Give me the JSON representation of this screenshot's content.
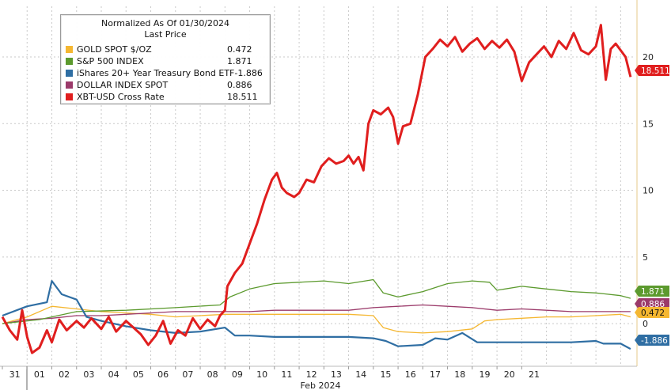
{
  "legend": {
    "title_line1": "Normalized As Of 01/30/2024",
    "title_line2": "Last Price",
    "items": [
      {
        "name": "GOLD SPOT $/OZ",
        "value": "0.472",
        "color": "#f5b731"
      },
      {
        "name": "S&P 500 INDEX",
        "value": "1.871",
        "color": "#5c9a2e"
      },
      {
        "name": "iShares 20+ Year Treasury Bond ETF",
        "value": "-1.886",
        "color": "#2f6ea3"
      },
      {
        "name": "DOLLAR INDEX SPOT",
        "value": "0.886",
        "color": "#9b3a6a"
      },
      {
        "name": "XBT-USD Cross Rate",
        "value": "18.511",
        "color": "#e01e1e"
      }
    ]
  },
  "chart_data": {
    "type": "line",
    "xlabel": "Feb 2024",
    "x_ticks": [
      "31",
      "01",
      "02",
      "03",
      "04",
      "05",
      "06",
      "07",
      "08",
      "09",
      "10",
      "11",
      "12",
      "13",
      "14",
      "15",
      "16",
      "17",
      "18",
      "19",
      "20",
      "21"
    ],
    "y_ticks": [
      0,
      5,
      10,
      15,
      20
    ],
    "ylim": [
      -3.2,
      23.8
    ],
    "grid": true,
    "legend_position": "top-left",
    "series": [
      {
        "name": "XBT-USD Cross Rate",
        "color": "#e01e1e",
        "last_label": "18.511",
        "points": [
          [
            0,
            0.5
          ],
          [
            0.3,
            -0.5
          ],
          [
            0.6,
            -1.2
          ],
          [
            0.8,
            1.0
          ],
          [
            1.0,
            -1.0
          ],
          [
            1.2,
            -2.2
          ],
          [
            1.5,
            -1.8
          ],
          [
            1.8,
            -0.5
          ],
          [
            2.0,
            -1.4
          ],
          [
            2.3,
            0.3
          ],
          [
            2.6,
            -0.5
          ],
          [
            3.0,
            0.2
          ],
          [
            3.3,
            -0.3
          ],
          [
            3.6,
            0.4
          ],
          [
            4.0,
            -0.4
          ],
          [
            4.3,
            0.5
          ],
          [
            4.6,
            -0.6
          ],
          [
            5.0,
            0.2
          ],
          [
            5.3,
            -0.3
          ],
          [
            5.6,
            -0.8
          ],
          [
            5.9,
            -1.6
          ],
          [
            6.2,
            -0.9
          ],
          [
            6.5,
            0.2
          ],
          [
            6.8,
            -1.5
          ],
          [
            7.1,
            -0.5
          ],
          [
            7.4,
            -0.9
          ],
          [
            7.7,
            0.4
          ],
          [
            8.0,
            -0.4
          ],
          [
            8.3,
            0.3
          ],
          [
            8.6,
            -0.2
          ],
          [
            8.8,
            0.6
          ],
          [
            9.0,
            1.0
          ],
          [
            9.1,
            2.8
          ],
          [
            9.4,
            3.8
          ],
          [
            9.7,
            4.5
          ],
          [
            10.0,
            6.0
          ],
          [
            10.3,
            7.5
          ],
          [
            10.6,
            9.3
          ],
          [
            10.9,
            10.8
          ],
          [
            11.1,
            11.3
          ],
          [
            11.3,
            10.2
          ],
          [
            11.5,
            9.8
          ],
          [
            11.8,
            9.5
          ],
          [
            12.0,
            9.8
          ],
          [
            12.3,
            10.8
          ],
          [
            12.6,
            10.6
          ],
          [
            12.9,
            11.8
          ],
          [
            13.2,
            12.4
          ],
          [
            13.5,
            12.0
          ],
          [
            13.8,
            12.2
          ],
          [
            14.0,
            12.6
          ],
          [
            14.2,
            12.0
          ],
          [
            14.4,
            12.5
          ],
          [
            14.6,
            11.5
          ],
          [
            14.8,
            15.0
          ],
          [
            15.0,
            16.0
          ],
          [
            15.3,
            15.7
          ],
          [
            15.6,
            16.2
          ],
          [
            15.8,
            15.5
          ],
          [
            16.0,
            13.5
          ],
          [
            16.2,
            14.8
          ],
          [
            16.5,
            15.0
          ],
          [
            16.8,
            17.2
          ],
          [
            17.1,
            20.0
          ],
          [
            17.4,
            20.6
          ],
          [
            17.7,
            21.3
          ],
          [
            18.0,
            20.8
          ],
          [
            18.3,
            21.5
          ],
          [
            18.6,
            20.4
          ],
          [
            18.9,
            21.0
          ],
          [
            19.2,
            21.4
          ],
          [
            19.5,
            20.6
          ],
          [
            19.8,
            21.2
          ],
          [
            20.1,
            20.7
          ],
          [
            20.4,
            21.3
          ],
          [
            20.7,
            20.4
          ],
          [
            21.0,
            18.2
          ],
          [
            21.3,
            19.6
          ],
          [
            21.6,
            20.2
          ],
          [
            21.9,
            20.8
          ],
          [
            22.2,
            20.0
          ],
          [
            22.5,
            21.2
          ],
          [
            22.8,
            20.6
          ],
          [
            23.1,
            21.8
          ],
          [
            23.4,
            20.5
          ],
          [
            23.7,
            20.2
          ],
          [
            24.0,
            20.8
          ],
          [
            24.2,
            22.4
          ],
          [
            24.4,
            18.3
          ],
          [
            24.6,
            20.6
          ],
          [
            24.8,
            21.0
          ],
          [
            25.0,
            20.5
          ],
          [
            25.2,
            20.0
          ],
          [
            25.4,
            18.5
          ]
        ]
      },
      {
        "name": "S&P 500 INDEX",
        "color": "#5c9a2e",
        "last_label": "1.871",
        "points": [
          [
            0,
            0
          ],
          [
            1.5,
            0.3
          ],
          [
            3.0,
            0.9
          ],
          [
            5.0,
            1.0
          ],
          [
            7.0,
            1.2
          ],
          [
            8.8,
            1.4
          ],
          [
            9.2,
            2.0
          ],
          [
            10.0,
            2.6
          ],
          [
            11.0,
            3.0
          ],
          [
            12.0,
            3.1
          ],
          [
            13.0,
            3.2
          ],
          [
            14.0,
            3.0
          ],
          [
            15.0,
            3.3
          ],
          [
            15.4,
            2.3
          ],
          [
            16.0,
            2.0
          ],
          [
            17.0,
            2.4
          ],
          [
            18.0,
            3.0
          ],
          [
            19.0,
            3.2
          ],
          [
            19.7,
            3.1
          ],
          [
            20.0,
            2.5
          ],
          [
            21.0,
            2.8
          ],
          [
            22.0,
            2.6
          ],
          [
            23.0,
            2.4
          ],
          [
            24.0,
            2.3
          ],
          [
            25.0,
            2.1
          ],
          [
            25.4,
            1.9
          ]
        ]
      },
      {
        "name": "iShares 20+ Year Treasury Bond ETF",
        "color": "#2f6ea3",
        "last_label": "-1.886",
        "points": [
          [
            0,
            0.6
          ],
          [
            1.0,
            1.3
          ],
          [
            1.8,
            1.6
          ],
          [
            2.0,
            3.2
          ],
          [
            2.4,
            2.2
          ],
          [
            3.0,
            1.8
          ],
          [
            3.4,
            0.5
          ],
          [
            4.0,
            0.2
          ],
          [
            5.0,
            -0.2
          ],
          [
            6.0,
            -0.5
          ],
          [
            7.0,
            -0.7
          ],
          [
            8.0,
            -0.6
          ],
          [
            9.0,
            -0.3
          ],
          [
            9.4,
            -0.9
          ],
          [
            10.0,
            -0.9
          ],
          [
            11.0,
            -1.0
          ],
          [
            12.0,
            -1.0
          ],
          [
            13.0,
            -1.0
          ],
          [
            14.0,
            -1.0
          ],
          [
            15.0,
            -1.1
          ],
          [
            15.5,
            -1.3
          ],
          [
            16.0,
            -1.7
          ],
          [
            17.0,
            -1.6
          ],
          [
            17.5,
            -1.1
          ],
          [
            18.0,
            -1.2
          ],
          [
            18.6,
            -0.7
          ],
          [
            19.2,
            -1.4
          ],
          [
            20.0,
            -1.4
          ],
          [
            21.0,
            -1.4
          ],
          [
            22.0,
            -1.4
          ],
          [
            23.0,
            -1.4
          ],
          [
            24.0,
            -1.3
          ],
          [
            24.3,
            -1.5
          ],
          [
            25.0,
            -1.5
          ],
          [
            25.4,
            -1.9
          ]
        ]
      },
      {
        "name": "DOLLAR INDEX SPOT",
        "color": "#9b3a6a",
        "last_label": "0.886",
        "points": [
          [
            0,
            0
          ],
          [
            1.0,
            0.3
          ],
          [
            2.0,
            0.4
          ],
          [
            3.0,
            0.6
          ],
          [
            4.0,
            0.6
          ],
          [
            5.0,
            0.7
          ],
          [
            6.0,
            0.8
          ],
          [
            7.0,
            0.9
          ],
          [
            8.0,
            0.9
          ],
          [
            9.0,
            0.9
          ],
          [
            10.0,
            0.9
          ],
          [
            11.0,
            1.0
          ],
          [
            12.0,
            1.0
          ],
          [
            13.0,
            1.0
          ],
          [
            14.0,
            1.0
          ],
          [
            15.0,
            1.2
          ],
          [
            16.0,
            1.3
          ],
          [
            17.0,
            1.4
          ],
          [
            18.0,
            1.3
          ],
          [
            19.0,
            1.2
          ],
          [
            20.0,
            1.0
          ],
          [
            21.0,
            1.1
          ],
          [
            22.0,
            1.0
          ],
          [
            23.0,
            0.9
          ],
          [
            24.0,
            0.9
          ],
          [
            25.0,
            0.9
          ],
          [
            25.4,
            0.9
          ]
        ]
      },
      {
        "name": "GOLD SPOT $/OZ",
        "color": "#f5b731",
        "last_label": "0.472",
        "points": [
          [
            0,
            0
          ],
          [
            1.0,
            0.5
          ],
          [
            2.0,
            1.3
          ],
          [
            3.0,
            1.1
          ],
          [
            4.0,
            0.9
          ],
          [
            5.0,
            0.8
          ],
          [
            6.0,
            0.7
          ],
          [
            7.0,
            0.5
          ],
          [
            8.0,
            0.6
          ],
          [
            9.0,
            0.7
          ],
          [
            10.0,
            0.7
          ],
          [
            11.0,
            0.7
          ],
          [
            12.0,
            0.7
          ],
          [
            13.0,
            0.7
          ],
          [
            14.0,
            0.7
          ],
          [
            15.0,
            0.6
          ],
          [
            15.4,
            -0.3
          ],
          [
            16.0,
            -0.6
          ],
          [
            17.0,
            -0.7
          ],
          [
            18.0,
            -0.6
          ],
          [
            19.0,
            -0.4
          ],
          [
            19.5,
            0.2
          ],
          [
            20.0,
            0.3
          ],
          [
            21.0,
            0.4
          ],
          [
            22.0,
            0.5
          ],
          [
            23.0,
            0.5
          ],
          [
            24.0,
            0.6
          ],
          [
            25.0,
            0.7
          ],
          [
            25.4,
            0.5
          ]
        ]
      }
    ]
  }
}
